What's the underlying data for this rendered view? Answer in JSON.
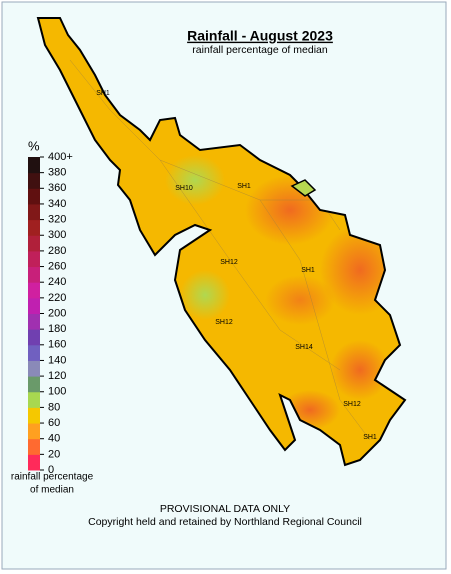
{
  "header": {
    "title": "Rainfall - August 2023",
    "subtitle": "rainfall percentage of median"
  },
  "legend": {
    "unit": "%",
    "caption": [
      "rainfall percentage",
      "of median"
    ],
    "ticks": [
      0,
      20,
      40,
      60,
      80,
      100,
      120,
      140,
      160,
      180,
      200,
      220,
      240,
      260,
      280,
      300,
      320,
      340,
      360,
      380,
      {
        "value": 400,
        "label": "400+"
      }
    ],
    "colors": [
      "#ff2a5a",
      "#ff6a30",
      "#ffa020",
      "#f5c800",
      "#a8d850",
      "#6a9a6a",
      "#8a8ab8",
      "#7060c0",
      "#7040b0",
      "#a030b0",
      "#c020b0",
      "#d020a0",
      "#c8207a",
      "#c0205a",
      "#b0203a",
      "#a02020",
      "#801818",
      "#601010",
      "#401010",
      "#201010"
    ]
  },
  "map": {
    "road_labels": [
      "SH1",
      "SH10",
      "SH1",
      "SH12",
      "SH1",
      "SH12",
      "SH14",
      "SH12",
      "SH1"
    ]
  },
  "footer": {
    "notice": "PROVISIONAL DATA ONLY",
    "copyright": "Copyright held and retained by Northland Regional Council"
  }
}
